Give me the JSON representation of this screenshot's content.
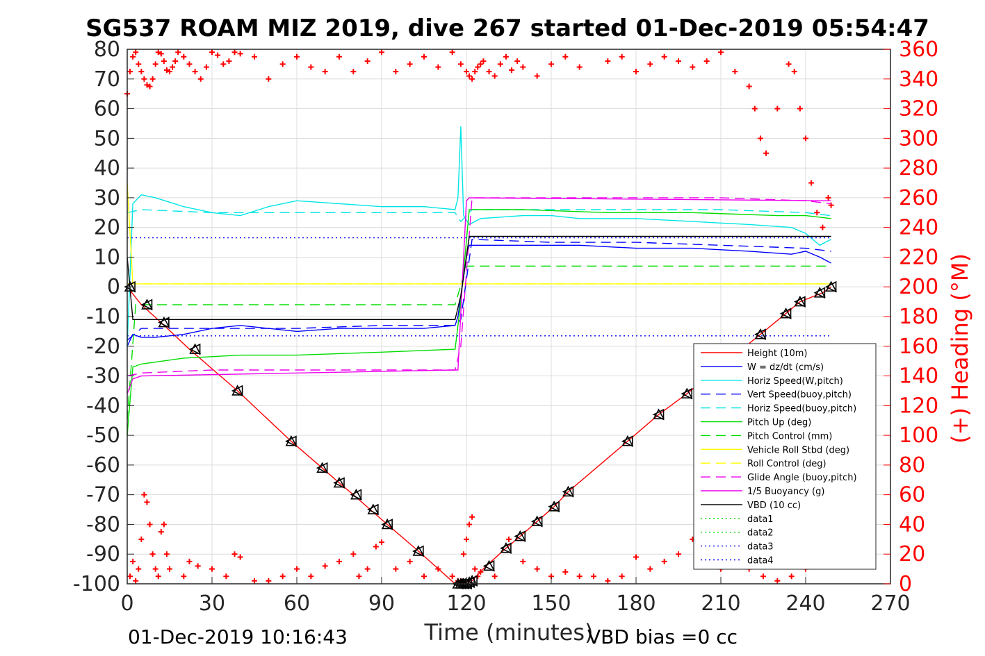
{
  "chart_data": {
    "type": "line",
    "title": "SG537 ROAM MIZ 2019, dive 267 started 01-Dec-2019 05:54:47",
    "xlabel": "Time (minutes)",
    "ylabel_right": "(+) Heading (°M)",
    "xlim": [
      0,
      270
    ],
    "ylim": [
      -100,
      80
    ],
    "ylim_right": [
      0,
      360
    ],
    "xticks": [
      "0",
      "30",
      "60",
      "90",
      "120",
      "150",
      "180",
      "210",
      "240",
      "270"
    ],
    "yticks": [
      "80",
      "70",
      "60",
      "50",
      "40",
      "30",
      "20",
      "10",
      "0",
      "-10",
      "-20",
      "-30",
      "-40",
      "-50",
      "-60",
      "-70",
      "-80",
      "-90",
      "-100"
    ],
    "yticks_right": [
      "360",
      "340",
      "320",
      "300",
      "280",
      "260",
      "240",
      "220",
      "200",
      "180",
      "160",
      "140",
      "120",
      "100",
      "80",
      "60",
      "40",
      "20",
      "0"
    ],
    "grid": true,
    "legend_position": "lower-right",
    "footer_left": "01-Dec-2019 10:16:43",
    "footer_right": "VBD bias =0 cc",
    "series": [
      {
        "name": "Height (10m)",
        "color": "#ff0000",
        "style": "solid",
        "x": [
          0,
          5,
          12,
          22,
          39,
          58,
          69,
          75,
          80,
          86,
          92,
          103,
          116,
          118,
          120,
          122,
          127,
          134,
          139,
          145,
          151,
          156,
          177,
          188,
          198,
          224,
          233,
          238,
          246,
          249
        ],
        "y": [
          0,
          -6,
          -12,
          -21,
          -35,
          -52,
          -61,
          -66,
          -70,
          -75,
          -80,
          -89,
          -100,
          -100,
          -100,
          -99,
          -94,
          -88,
          -84,
          -79,
          -74,
          -69,
          -52,
          -43,
          -36,
          -16,
          -9,
          -5,
          -2,
          0
        ]
      },
      {
        "name": "W = dz/dt (cm/s)",
        "color": "#0000ff",
        "style": "solid",
        "x": [
          0,
          2,
          5,
          10,
          20,
          30,
          40,
          50,
          60,
          75,
          90,
          105,
          116,
          117,
          120,
          121,
          125,
          140,
          150,
          160,
          180,
          200,
          220,
          235,
          240,
          245,
          249
        ],
        "y": [
          -20,
          -16,
          -17,
          -17,
          -16,
          -14,
          -13,
          -14,
          -15,
          -14,
          -14,
          -14,
          -13,
          -10,
          10,
          14,
          14,
          14,
          14,
          14,
          13,
          13,
          12,
          11,
          12,
          10,
          8
        ]
      },
      {
        "name": "Horiz Speed(W,pitch)",
        "color": "#00e5e5",
        "style": "solid",
        "x": [
          0,
          2,
          5,
          10,
          20,
          30,
          40,
          50,
          60,
          75,
          90,
          105,
          116,
          117,
          118,
          119,
          121,
          125,
          140,
          150,
          160,
          180,
          200,
          220,
          235,
          240,
          245,
          249
        ],
        "y": [
          -20,
          28,
          31,
          30,
          27,
          25,
          24,
          27,
          29,
          28,
          27,
          27,
          26,
          30,
          54,
          24,
          21,
          23,
          24,
          24,
          23,
          23,
          22,
          21,
          20,
          18,
          14,
          16
        ]
      },
      {
        "name": "Vert Speed(buoy,pitch)",
        "color": "#0000ff",
        "style": "dashed",
        "x": [
          0,
          5,
          30,
          60,
          90,
          116,
          118,
          122,
          150,
          180,
          210,
          240,
          249
        ],
        "y": [
          -18,
          -14,
          -14,
          -14,
          -13,
          -13,
          -11,
          16,
          15,
          15,
          14,
          13,
          12
        ]
      },
      {
        "name": "Horiz Speed(buoy,pitch)",
        "color": "#00e5e5",
        "style": "dashed",
        "x": [
          0,
          5,
          30,
          60,
          90,
          116,
          118,
          122,
          150,
          180,
          210,
          240,
          249
        ],
        "y": [
          25,
          26,
          25,
          25,
          25,
          25,
          22,
          26,
          26,
          26,
          26,
          25,
          24
        ]
      },
      {
        "name": "Pitch Up (deg)",
        "color": "#00dd00",
        "style": "solid",
        "x": [
          0,
          2,
          5,
          20,
          40,
          60,
          90,
          116,
          118,
          121,
          140,
          170,
          200,
          230,
          240,
          249
        ],
        "y": [
          -50,
          -27,
          -26,
          -24,
          -23,
          -23,
          -22,
          -21,
          -5,
          26,
          26,
          25,
          25,
          24,
          24,
          23
        ]
      },
      {
        "name": "Pitch Control (mm)",
        "color": "#00dd00",
        "style": "dashed",
        "x": [
          0,
          3,
          116,
          120,
          249
        ],
        "y": [
          -45,
          -6,
          -6,
          7,
          7
        ]
      },
      {
        "name": "Vehicle Roll Stbd (deg)",
        "color": "#ffff00",
        "style": "solid",
        "x": [
          0,
          2,
          30,
          60,
          90,
          116,
          120,
          150,
          180,
          210,
          249
        ],
        "y": [
          35,
          1,
          1,
          1,
          1,
          1,
          1,
          1,
          1,
          1,
          1
        ]
      },
      {
        "name": "Roll Control (deg)",
        "color": "#ffff00",
        "style": "dashed",
        "x": [
          0,
          249
        ],
        "y": [
          1,
          1
        ]
      },
      {
        "name": "Glide Angle (buoy,pitch)",
        "color": "#ee00ee",
        "style": "dashed",
        "x": [
          0,
          5,
          30,
          60,
          90,
          116,
          118,
          122,
          150,
          180,
          210,
          240,
          249
        ],
        "y": [
          -30,
          -29,
          -28,
          -28,
          -28,
          -28,
          -20,
          30,
          30,
          30,
          30,
          29,
          28
        ]
      },
      {
        "name": "1/5 Buoyancy (g)",
        "color": "#ee00ee",
        "style": "solid",
        "x": [
          0,
          2,
          5,
          116,
          117,
          120,
          121,
          249
        ],
        "y": [
          -36,
          -31,
          -30,
          -28,
          -28,
          29,
          30,
          29
        ]
      },
      {
        "name": "VBD (10 cc)",
        "color": "#000000",
        "style": "solid",
        "x": [
          0,
          2,
          116,
          118,
          121,
          249
        ],
        "y": [
          10,
          -11,
          -11,
          -3,
          17,
          17
        ]
      },
      {
        "name": "data1",
        "color": "#00dd00",
        "style": "dotted",
        "x": [],
        "y": []
      },
      {
        "name": "data2",
        "color": "#00dd00",
        "style": "dotted",
        "x": [],
        "y": []
      },
      {
        "name": "data3",
        "color": "#0000ff",
        "style": "dotted",
        "x": [
          0,
          249
        ],
        "y": [
          16.5,
          16.5
        ]
      },
      {
        "name": "data4",
        "color": "#0000ff",
        "style": "dotted",
        "x": [
          0,
          249
        ],
        "y": [
          -16.5,
          -16.5
        ]
      }
    ],
    "heading_series": {
      "color": "#ff0000",
      "marker": "+",
      "axis": "right",
      "x": [
        0,
        1,
        2,
        3,
        4,
        5,
        6,
        7,
        8,
        9,
        10,
        11,
        12,
        13,
        14,
        15,
        16,
        17,
        18,
        20,
        22,
        24,
        26,
        28,
        30,
        32,
        34,
        36,
        38,
        40,
        45,
        50,
        55,
        60,
        65,
        70,
        75,
        80,
        85,
        90,
        95,
        100,
        105,
        110,
        115,
        118,
        120,
        121,
        122,
        123,
        124,
        125,
        126,
        128,
        130,
        132,
        134,
        136,
        138,
        140,
        145,
        150,
        155,
        160,
        170,
        175,
        180,
        185,
        190,
        195,
        200,
        205,
        210,
        215,
        220,
        222,
        224,
        226,
        230,
        234,
        236,
        238,
        240,
        242,
        244,
        246,
        248,
        249
      ],
      "y": [
        330,
        345,
        355,
        358,
        350,
        345,
        340,
        336,
        335,
        340,
        350,
        358,
        357,
        352,
        346,
        345,
        348,
        352,
        358,
        355,
        350,
        345,
        340,
        348,
        358,
        356,
        350,
        352,
        358,
        357,
        355,
        340,
        350,
        355,
        348,
        345,
        355,
        345,
        352,
        358,
        345,
        350,
        355,
        348,
        358,
        350,
        345,
        342,
        340,
        345,
        348,
        350,
        352,
        345,
        342,
        350,
        355,
        346,
        352,
        348,
        342,
        350,
        355,
        348,
        352,
        355,
        345,
        350,
        355,
        352,
        348,
        352,
        358,
        345,
        335,
        320,
        300,
        290,
        320,
        350,
        345,
        320,
        300,
        270,
        250,
        240,
        260,
        255
      ]
    },
    "heading_series_low": {
      "color": "#ff0000",
      "marker": "+",
      "axis": "right",
      "x": [
        1,
        2,
        3,
        4,
        5,
        6,
        7,
        8,
        9,
        10,
        11,
        12,
        13,
        14,
        15,
        20,
        22,
        25,
        30,
        35,
        38,
        40,
        45,
        50,
        55,
        60,
        65,
        70,
        75,
        80,
        82,
        85,
        88,
        90,
        95,
        100,
        105,
        110,
        115,
        117,
        118,
        119,
        120,
        121,
        122,
        123,
        124,
        125,
        130,
        135,
        140,
        145,
        150,
        155,
        160,
        165,
        170,
        175,
        180,
        185,
        190,
        195,
        200,
        205,
        210,
        215,
        220,
        225,
        230,
        235,
        240
      ],
      "y": [
        5,
        15,
        2,
        10,
        30,
        60,
        55,
        40,
        20,
        10,
        5,
        35,
        40,
        20,
        10,
        5,
        15,
        12,
        10,
        5,
        20,
        18,
        2,
        2,
        5,
        10,
        5,
        12,
        15,
        20,
        5,
        10,
        25,
        28,
        10,
        15,
        5,
        10,
        5,
        2,
        2,
        20,
        30,
        40,
        45,
        10,
        5,
        8,
        5,
        30,
        15,
        10,
        5,
        8,
        5,
        5,
        2,
        5,
        18,
        10,
        15,
        20,
        30,
        40,
        10,
        15,
        10,
        5,
        2,
        5,
        10
      ]
    },
    "depth_markers": {
      "x": [
        1,
        7,
        13,
        24,
        39,
        58,
        69,
        75,
        81,
        87,
        92,
        103,
        117,
        118,
        119,
        120,
        121,
        122,
        128,
        134,
        139,
        145,
        151,
        156,
        177,
        188,
        198,
        224,
        233,
        238,
        245,
        249
      ],
      "y": [
        0,
        -6,
        -12,
        -21,
        -35,
        -52,
        -61,
        -66,
        -70,
        -75,
        -80,
        -89,
        -100,
        -100,
        -100,
        -100,
        -99.5,
        -99,
        -94,
        -88,
        -84,
        -79,
        -74,
        -69,
        -52,
        -43,
        -36,
        -16,
        -9,
        -5,
        -2,
        0
      ]
    }
  }
}
